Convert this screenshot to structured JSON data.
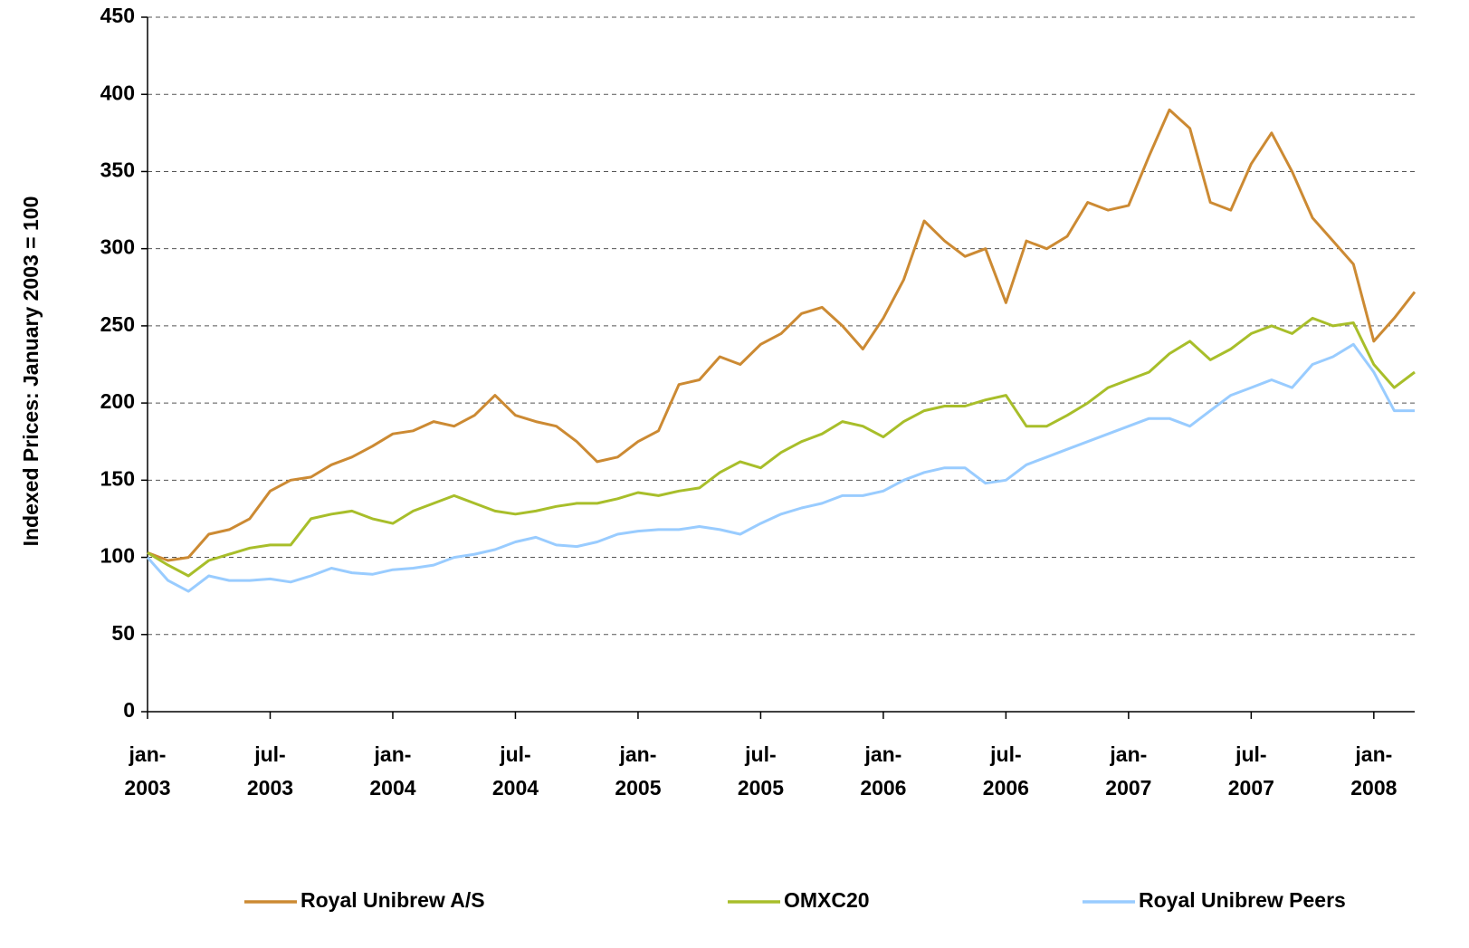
{
  "chart_data": {
    "type": "line",
    "y_label": "Indexed Prices: January 2003 = 100",
    "x": [
      "2003-01",
      "2003-02",
      "2003-03",
      "2003-04",
      "2003-05",
      "2003-06",
      "2003-07",
      "2003-08",
      "2003-09",
      "2003-10",
      "2003-11",
      "2003-12",
      "2004-01",
      "2004-02",
      "2004-03",
      "2004-04",
      "2004-05",
      "2004-06",
      "2004-07",
      "2004-08",
      "2004-09",
      "2004-10",
      "2004-11",
      "2004-12",
      "2005-01",
      "2005-02",
      "2005-03",
      "2005-04",
      "2005-05",
      "2005-06",
      "2005-07",
      "2005-08",
      "2005-09",
      "2005-10",
      "2005-11",
      "2005-12",
      "2006-01",
      "2006-02",
      "2006-03",
      "2006-04",
      "2006-05",
      "2006-06",
      "2006-07",
      "2006-08",
      "2006-09",
      "2006-10",
      "2006-11",
      "2006-12",
      "2007-01",
      "2007-02",
      "2007-03",
      "2007-04",
      "2007-05",
      "2007-06",
      "2007-07",
      "2007-08",
      "2007-09",
      "2007-10",
      "2007-11",
      "2007-12",
      "2008-01",
      "2008-02",
      "2008-03"
    ],
    "series": [
      {
        "name": "Royal Unibrew A/S",
        "color": "#CC8A33",
        "values": [
          103,
          98,
          100,
          115,
          118,
          125,
          143,
          150,
          152,
          160,
          165,
          172,
          180,
          182,
          188,
          185,
          192,
          205,
          192,
          188,
          185,
          175,
          162,
          165,
          175,
          182,
          212,
          215,
          230,
          225,
          238,
          245,
          258,
          262,
          250,
          235,
          255,
          280,
          318,
          305,
          295,
          300,
          265,
          305,
          300,
          308,
          330,
          325,
          328,
          360,
          390,
          378,
          330,
          325,
          355,
          375,
          350,
          320,
          305,
          290,
          240,
          255,
          272
        ]
      },
      {
        "name": "OMXC20",
        "color": "#A8BE2A",
        "values": [
          103,
          95,
          88,
          98,
          102,
          106,
          108,
          108,
          125,
          128,
          130,
          125,
          122,
          130,
          135,
          140,
          135,
          130,
          128,
          130,
          133,
          135,
          135,
          138,
          142,
          140,
          143,
          145,
          155,
          162,
          158,
          168,
          175,
          180,
          188,
          185,
          178,
          188,
          195,
          198,
          198,
          202,
          205,
          185,
          185,
          192,
          200,
          210,
          215,
          220,
          232,
          240,
          228,
          235,
          245,
          250,
          245,
          255,
          250,
          252,
          225,
          210,
          220
        ]
      },
      {
        "name": "Royal Unibrew Peers",
        "color": "#99CCFF",
        "values": [
          100,
          85,
          78,
          88,
          85,
          85,
          86,
          84,
          88,
          93,
          90,
          89,
          92,
          93,
          95,
          100,
          102,
          105,
          110,
          113,
          108,
          107,
          110,
          115,
          117,
          118,
          118,
          120,
          118,
          115,
          122,
          128,
          132,
          135,
          140,
          140,
          143,
          150,
          155,
          158,
          158,
          148,
          150,
          160,
          165,
          170,
          175,
          180,
          185,
          190,
          190,
          185,
          195,
          205,
          210,
          215,
          210,
          225,
          230,
          238,
          220,
          195,
          195
        ]
      }
    ],
    "xlim": [
      "2003-01",
      "2008-03"
    ],
    "xticks": [
      {
        "value": "2003-01",
        "label": [
          "jan-",
          "2003"
        ]
      },
      {
        "value": "2003-07",
        "label": [
          "jul-",
          "2003"
        ]
      },
      {
        "value": "2004-01",
        "label": [
          "jan-",
          "2004"
        ]
      },
      {
        "value": "2004-07",
        "label": [
          "jul-",
          "2004"
        ]
      },
      {
        "value": "2005-01",
        "label": [
          "jan-",
          "2005"
        ]
      },
      {
        "value": "2005-07",
        "label": [
          "jul-",
          "2005"
        ]
      },
      {
        "value": "2006-01",
        "label": [
          "jan-",
          "2006"
        ]
      },
      {
        "value": "2006-07",
        "label": [
          "jul-",
          "2006"
        ]
      },
      {
        "value": "2007-01",
        "label": [
          "jan-",
          "2007"
        ]
      },
      {
        "value": "2007-07",
        "label": [
          "jul-",
          "2007"
        ]
      },
      {
        "value": "2008-01",
        "label": [
          "jan-",
          "2008"
        ]
      }
    ],
    "ylim": [
      0,
      450
    ],
    "yticks": [
      0,
      50,
      100,
      150,
      200,
      250,
      300,
      350,
      400,
      450
    ],
    "grid": true,
    "legend": "bottom"
  }
}
